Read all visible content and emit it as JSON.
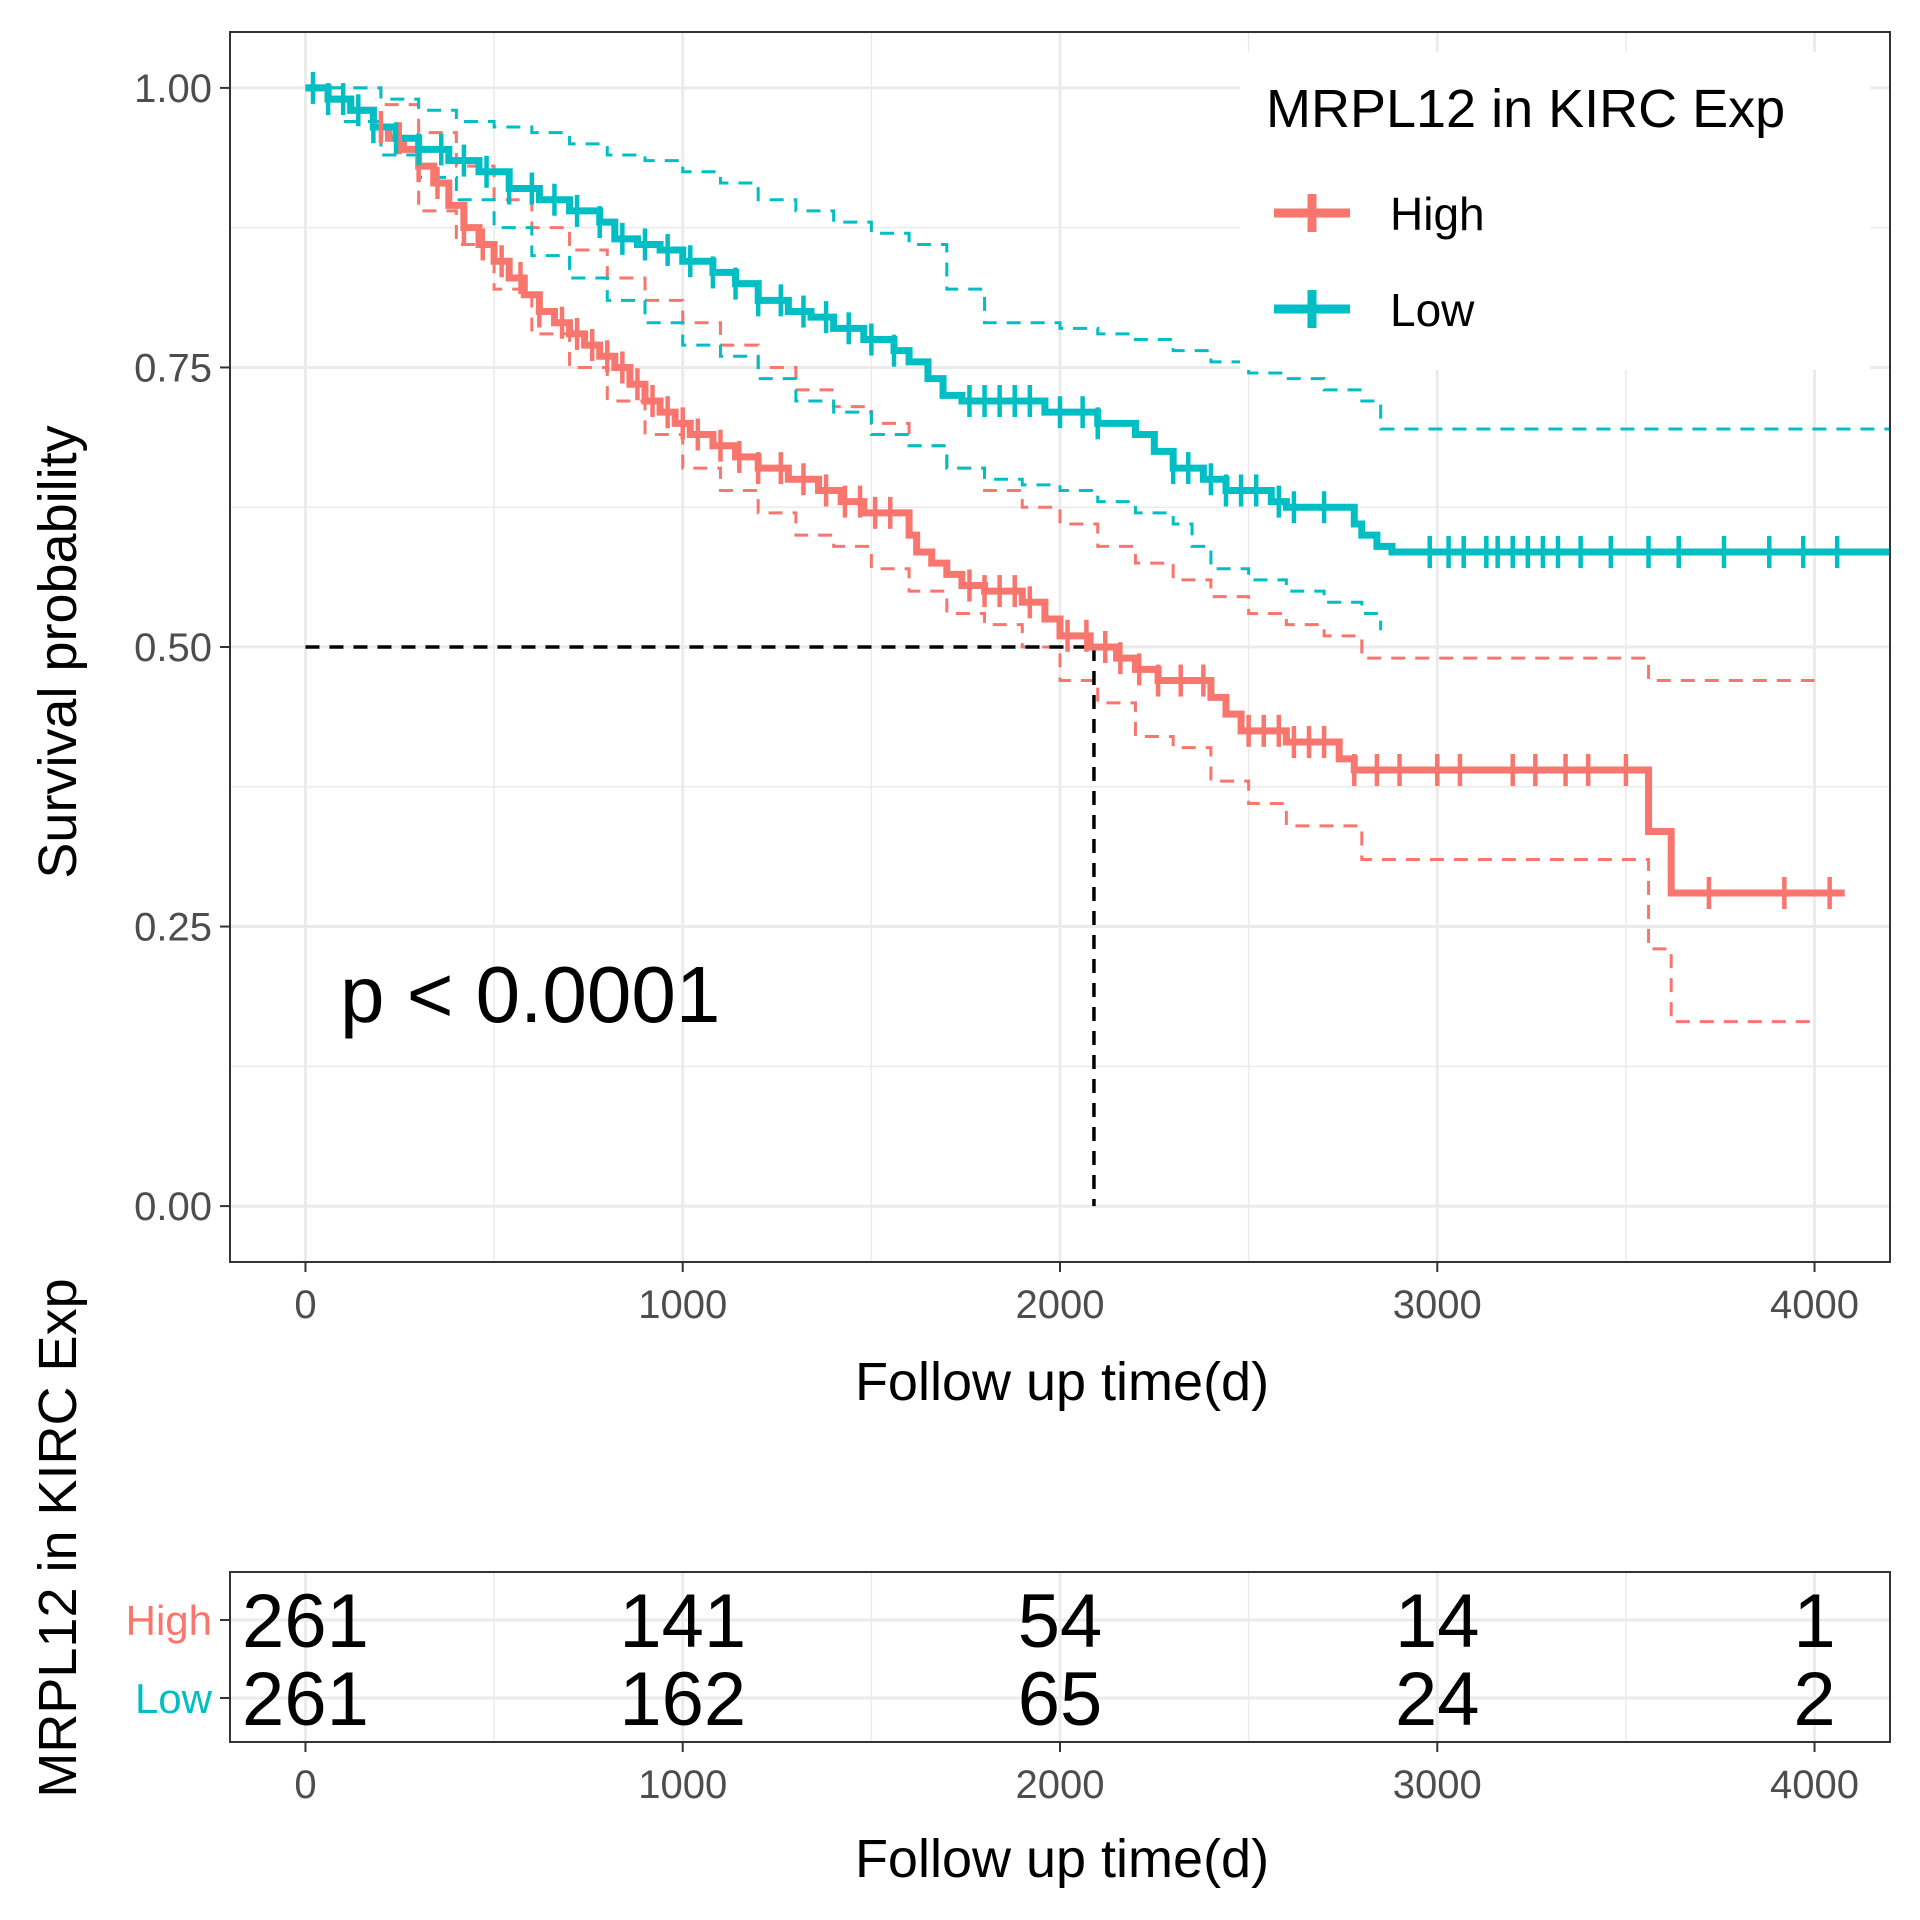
{
  "chart_data": [
    {
      "type": "line",
      "subtype": "kaplan-meier",
      "xlabel": "Follow up time(d)",
      "ylabel": "Survival probability",
      "xlim": [
        -200,
        4200
      ],
      "ylim": [
        -0.05,
        1.05
      ],
      "x_ticks": [
        0,
        1000,
        2000,
        3000,
        4000
      ],
      "y_ticks": [
        0,
        0.25,
        0.5,
        0.75,
        1
      ],
      "y_tick_labels": [
        "0.00",
        "0.25",
        "0.50",
        "0.75",
        "1.00"
      ],
      "grid": true,
      "legend": {
        "title": "MRPL12 in KIRC Exp",
        "position": "top-right",
        "entries": [
          "High",
          "Low"
        ]
      },
      "annotation": "p < 0.0001",
      "median_survival": {
        "x": 2090,
        "y": 0.5
      },
      "series": [
        {
          "name": "High",
          "color": "#F8766D",
          "steps": [
            [
              0,
              1
            ],
            [
              60,
              0.99
            ],
            [
              120,
              0.98
            ],
            [
              180,
              0.965
            ],
            [
              220,
              0.955
            ],
            [
              260,
              0.945
            ],
            [
              300,
              0.93
            ],
            [
              340,
              0.915
            ],
            [
              380,
              0.895
            ],
            [
              420,
              0.875
            ],
            [
              460,
              0.86
            ],
            [
              500,
              0.845
            ],
            [
              540,
              0.83
            ],
            [
              580,
              0.815
            ],
            [
              620,
              0.8
            ],
            [
              660,
              0.79
            ],
            [
              700,
              0.78
            ],
            [
              740,
              0.77
            ],
            [
              780,
              0.76
            ],
            [
              820,
              0.75
            ],
            [
              860,
              0.735
            ],
            [
              900,
              0.72
            ],
            [
              940,
              0.71
            ],
            [
              980,
              0.7
            ],
            [
              1020,
              0.69
            ],
            [
              1080,
              0.68
            ],
            [
              1140,
              0.67
            ],
            [
              1200,
              0.66
            ],
            [
              1280,
              0.65
            ],
            [
              1360,
              0.64
            ],
            [
              1420,
              0.63
            ],
            [
              1480,
              0.62
            ],
            [
              1600,
              0.6
            ],
            [
              1620,
              0.585
            ],
            [
              1660,
              0.575
            ],
            [
              1700,
              0.565
            ],
            [
              1740,
              0.555
            ],
            [
              1800,
              0.55
            ],
            [
              1900,
              0.54
            ],
            [
              1960,
              0.525
            ],
            [
              2000,
              0.51
            ],
            [
              2080,
              0.5
            ],
            [
              2150,
              0.49
            ],
            [
              2200,
              0.48
            ],
            [
              2260,
              0.47
            ],
            [
              2400,
              0.455
            ],
            [
              2440,
              0.44
            ],
            [
              2480,
              0.425
            ],
            [
              2600,
              0.415
            ],
            [
              2740,
              0.4
            ],
            [
              2780,
              0.39
            ],
            [
              3540,
              0.39
            ],
            [
              3560,
              0.335
            ],
            [
              3620,
              0.28
            ],
            [
              4080,
              0.28
            ]
          ],
          "lower": [
            [
              0,
              1
            ],
            [
              100,
              0.97
            ],
            [
              200,
              0.94
            ],
            [
              300,
              0.89
            ],
            [
              400,
              0.86
            ],
            [
              500,
              0.82
            ],
            [
              600,
              0.78
            ],
            [
              700,
              0.75
            ],
            [
              800,
              0.72
            ],
            [
              900,
              0.69
            ],
            [
              1000,
              0.66
            ],
            [
              1100,
              0.64
            ],
            [
              1200,
              0.62
            ],
            [
              1300,
              0.6
            ],
            [
              1400,
              0.59
            ],
            [
              1500,
              0.57
            ],
            [
              1600,
              0.55
            ],
            [
              1700,
              0.53
            ],
            [
              1800,
              0.52
            ],
            [
              1900,
              0.5
            ],
            [
              2000,
              0.47
            ],
            [
              2100,
              0.45
            ],
            [
              2200,
              0.42
            ],
            [
              2300,
              0.41
            ],
            [
              2400,
              0.38
            ],
            [
              2500,
              0.36
            ],
            [
              2600,
              0.34
            ],
            [
              2800,
              0.31
            ],
            [
              3540,
              0.31
            ],
            [
              3560,
              0.23
            ],
            [
              3620,
              0.165
            ],
            [
              4000,
              0.165
            ]
          ],
          "upper": [
            [
              0,
              1
            ],
            [
              100,
              1
            ],
            [
              200,
              0.985
            ],
            [
              300,
              0.96
            ],
            [
              400,
              0.93
            ],
            [
              500,
              0.9
            ],
            [
              600,
              0.875
            ],
            [
              700,
              0.855
            ],
            [
              800,
              0.83
            ],
            [
              900,
              0.81
            ],
            [
              1000,
              0.79
            ],
            [
              1100,
              0.77
            ],
            [
              1200,
              0.75
            ],
            [
              1300,
              0.73
            ],
            [
              1400,
              0.715
            ],
            [
              1500,
              0.7
            ],
            [
              1600,
              0.68
            ],
            [
              1700,
              0.66
            ],
            [
              1800,
              0.64
            ],
            [
              1900,
              0.625
            ],
            [
              2000,
              0.61
            ],
            [
              2100,
              0.59
            ],
            [
              2200,
              0.575
            ],
            [
              2300,
              0.56
            ],
            [
              2400,
              0.545
            ],
            [
              2500,
              0.53
            ],
            [
              2600,
              0.52
            ],
            [
              2700,
              0.51
            ],
            [
              2800,
              0.49
            ],
            [
              3540,
              0.49
            ],
            [
              3560,
              0.47
            ],
            [
              4000,
              0.47
            ]
          ],
          "censors": [
            200,
            250,
            300,
            350,
            420,
            470,
            520,
            570,
            620,
            680,
            720,
            760,
            800,
            840,
            880,
            920,
            960,
            1000,
            1040,
            1100,
            1150,
            1200,
            1260,
            1320,
            1380,
            1430,
            1470,
            1510,
            1550,
            1760,
            1800,
            1840,
            1880,
            1920,
            2020,
            2070,
            2120,
            2160,
            2210,
            2260,
            2320,
            2380,
            2500,
            2540,
            2580,
            2620,
            2660,
            2700,
            2780,
            2840,
            2900,
            3000,
            3060,
            3200,
            3260,
            3340,
            3400,
            3500,
            3720,
            3920,
            4040
          ]
        },
        {
          "name": "Low",
          "color": "#00BFC4",
          "steps": [
            [
              0,
              1
            ],
            [
              60,
              0.99
            ],
            [
              120,
              0.98
            ],
            [
              180,
              0.965
            ],
            [
              240,
              0.955
            ],
            [
              300,
              0.945
            ],
            [
              380,
              0.935
            ],
            [
              460,
              0.925
            ],
            [
              540,
              0.91
            ],
            [
              620,
              0.9
            ],
            [
              700,
              0.89
            ],
            [
              780,
              0.88
            ],
            [
              820,
              0.865
            ],
            [
              880,
              0.86
            ],
            [
              940,
              0.855
            ],
            [
              1000,
              0.845
            ],
            [
              1080,
              0.835
            ],
            [
              1140,
              0.825
            ],
            [
              1200,
              0.81
            ],
            [
              1280,
              0.8
            ],
            [
              1340,
              0.795
            ],
            [
              1400,
              0.785
            ],
            [
              1480,
              0.775
            ],
            [
              1560,
              0.765
            ],
            [
              1600,
              0.755
            ],
            [
              1650,
              0.74
            ],
            [
              1690,
              0.725
            ],
            [
              1740,
              0.72
            ],
            [
              1960,
              0.71
            ],
            [
              2100,
              0.7
            ],
            [
              2200,
              0.69
            ],
            [
              2250,
              0.675
            ],
            [
              2300,
              0.66
            ],
            [
              2380,
              0.65
            ],
            [
              2440,
              0.64
            ],
            [
              2560,
              0.63
            ],
            [
              2600,
              0.625
            ],
            [
              2780,
              0.61
            ],
            [
              2800,
              0.6
            ],
            [
              2840,
              0.59
            ],
            [
              2880,
              0.585
            ],
            [
              4200,
              0.585
            ]
          ],
          "lower": [
            [
              0,
              1
            ],
            [
              100,
              0.97
            ],
            [
              200,
              0.94
            ],
            [
              300,
              0.92
            ],
            [
              400,
              0.9
            ],
            [
              500,
              0.875
            ],
            [
              600,
              0.85
            ],
            [
              700,
              0.83
            ],
            [
              800,
              0.81
            ],
            [
              900,
              0.79
            ],
            [
              1000,
              0.77
            ],
            [
              1100,
              0.76
            ],
            [
              1200,
              0.74
            ],
            [
              1300,
              0.72
            ],
            [
              1400,
              0.71
            ],
            [
              1500,
              0.69
            ],
            [
              1600,
              0.68
            ],
            [
              1700,
              0.66
            ],
            [
              1800,
              0.65
            ],
            [
              1900,
              0.645
            ],
            [
              2000,
              0.64
            ],
            [
              2100,
              0.63
            ],
            [
              2200,
              0.62
            ],
            [
              2300,
              0.61
            ],
            [
              2350,
              0.59
            ],
            [
              2400,
              0.57
            ],
            [
              2500,
              0.56
            ],
            [
              2600,
              0.55
            ],
            [
              2700,
              0.54
            ],
            [
              2800,
              0.53
            ],
            [
              2850,
              0.515
            ]
          ],
          "upper": [
            [
              0,
              1
            ],
            [
              100,
              1
            ],
            [
              200,
              0.99
            ],
            [
              300,
              0.98
            ],
            [
              400,
              0.97
            ],
            [
              500,
              0.965
            ],
            [
              600,
              0.96
            ],
            [
              700,
              0.95
            ],
            [
              800,
              0.94
            ],
            [
              900,
              0.935
            ],
            [
              1000,
              0.925
            ],
            [
              1100,
              0.915
            ],
            [
              1200,
              0.9
            ],
            [
              1300,
              0.89
            ],
            [
              1400,
              0.88
            ],
            [
              1500,
              0.87
            ],
            [
              1600,
              0.86
            ],
            [
              1700,
              0.82
            ],
            [
              1800,
              0.79
            ],
            [
              1900,
              0.79
            ],
            [
              2000,
              0.785
            ],
            [
              2100,
              0.78
            ],
            [
              2200,
              0.775
            ],
            [
              2300,
              0.765
            ],
            [
              2400,
              0.755
            ],
            [
              2500,
              0.745
            ],
            [
              2600,
              0.74
            ],
            [
              2700,
              0.73
            ],
            [
              2800,
              0.72
            ],
            [
              2850,
              0.695
            ],
            [
              4200,
              0.695
            ]
          ],
          "censors": [
            20,
            60,
            100,
            140,
            180,
            240,
            300,
            360,
            420,
            480,
            540,
            600,
            660,
            720,
            780,
            840,
            900,
            960,
            1020,
            1080,
            1140,
            1200,
            1260,
            1320,
            1380,
            1440,
            1500,
            1560,
            1760,
            1800,
            1840,
            1880,
            1920,
            2000,
            2060,
            2100,
            2300,
            2340,
            2400,
            2440,
            2480,
            2520,
            2580,
            2620,
            2700,
            2980,
            3030,
            3070,
            3130,
            3160,
            3200,
            3240,
            3280,
            3320,
            3380,
            3460,
            3560,
            3640,
            3760,
            3880,
            3970,
            4060
          ]
        }
      ]
    },
    {
      "type": "table",
      "title": "",
      "ylabel": "MRPL12 in KIRC Exp",
      "xlabel": "Follow up time(d)",
      "x_ticks": [
        0,
        1000,
        2000,
        3000,
        4000
      ],
      "rows": [
        {
          "name": "High",
          "color": "#F8766D",
          "values": [
            261,
            141,
            54,
            14,
            1
          ]
        },
        {
          "name": "Low",
          "color": "#00BFC4",
          "values": [
            261,
            162,
            65,
            24,
            2
          ]
        }
      ]
    }
  ]
}
